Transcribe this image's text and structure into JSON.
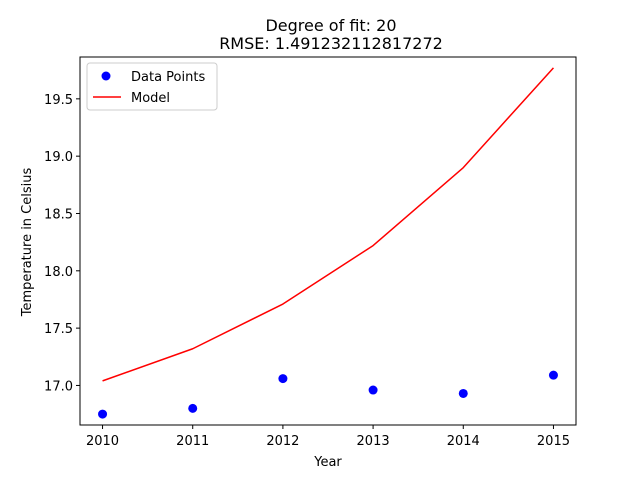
{
  "chart_data": {
    "type": "line",
    "title": "Degree of fit: 20",
    "subtitle": "RMSE: 1.491232112817272",
    "xlabel": "Year",
    "ylabel": "Temperature in Celsius",
    "xlim": [
      2009.75,
      2015.25
    ],
    "ylim": [
      16.655,
      19.865
    ],
    "xticks": [
      2010,
      2011,
      2012,
      2013,
      2014,
      2015
    ],
    "xtick_labels": [
      "2010",
      "2011",
      "2012",
      "2013",
      "2014",
      "2015"
    ],
    "yticks": [
      17.0,
      17.5,
      18.0,
      18.5,
      19.0,
      19.5
    ],
    "ytick_labels": [
      "17.0",
      "17.5",
      "18.0",
      "18.5",
      "19.0",
      "19.5"
    ],
    "grid": false,
    "legend": {
      "placement": "top-left",
      "entries": [
        "Data Points",
        "Model"
      ]
    },
    "series": [
      {
        "name": "Data Points",
        "style": "markers",
        "color": "#0000ff",
        "x": [
          2010,
          2011,
          2012,
          2013,
          2014,
          2015
        ],
        "y": [
          16.75,
          16.8,
          17.06,
          16.96,
          16.93,
          17.09
        ]
      },
      {
        "name": "Model",
        "style": "line",
        "color": "#ff0000",
        "x": [
          2010,
          2011,
          2012,
          2013,
          2014,
          2015
        ],
        "y": [
          17.04,
          17.32,
          17.71,
          18.22,
          18.9,
          19.77
        ]
      }
    ]
  }
}
